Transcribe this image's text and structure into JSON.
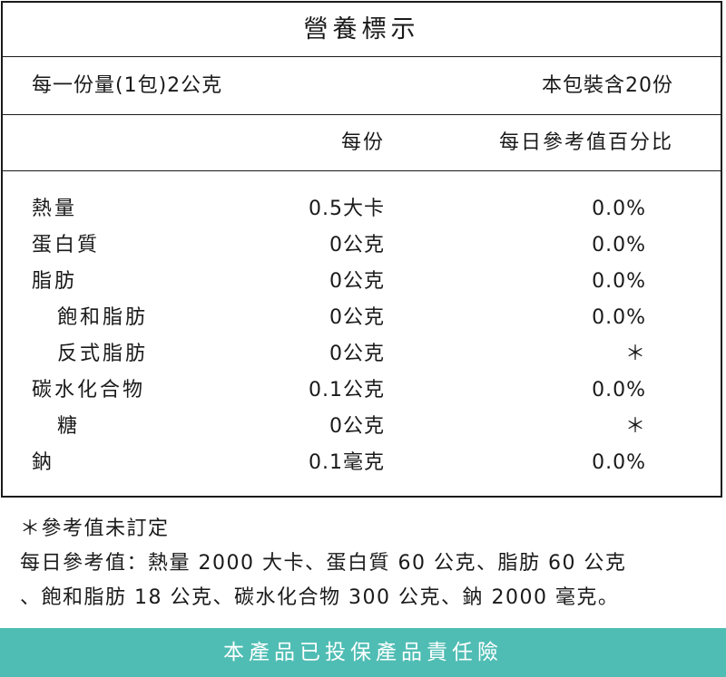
{
  "title": "營養標示",
  "serving": {
    "size": "每一份量(1包)2公克",
    "per_package": "本包裝含20份"
  },
  "columns": {
    "per_serving": "每份",
    "daily_value": "每日參考值百分比"
  },
  "nutrients": [
    {
      "name": "熱量",
      "amount": "0.5大卡",
      "dv": "0.0%",
      "sub": false
    },
    {
      "name": "蛋白質",
      "amount": "0公克",
      "dv": "0.0%",
      "sub": false
    },
    {
      "name": "脂肪",
      "amount": "0公克",
      "dv": "0.0%",
      "sub": false
    },
    {
      "name": "飽和脂肪",
      "amount": "0公克",
      "dv": "0.0%",
      "sub": true
    },
    {
      "name": "反式脂肪",
      "amount": "0公克",
      "dv": "＊",
      "sub": true
    },
    {
      "name": "碳水化合物",
      "amount": "0.1公克",
      "dv": "0.0%",
      "sub": false
    },
    {
      "name": "糖",
      "amount": "0公克",
      "dv": "＊",
      "sub": true
    },
    {
      "name": "鈉",
      "amount": "0.1毫克",
      "dv": "0.0%",
      "sub": false
    }
  ],
  "notes": {
    "footnote": "＊參考值未訂定",
    "reference_line1": "每日參考值：熱量 2000 大卡、蛋白質 60 公克、脂肪 60 公克",
    "reference_line2": "、飽和脂肪 18 公克、碳水化合物 300 公克、鈉 2000 毫克。"
  },
  "footer": {
    "text": "本產品已投保產品責任險",
    "background_color": "#4fbdb4"
  }
}
